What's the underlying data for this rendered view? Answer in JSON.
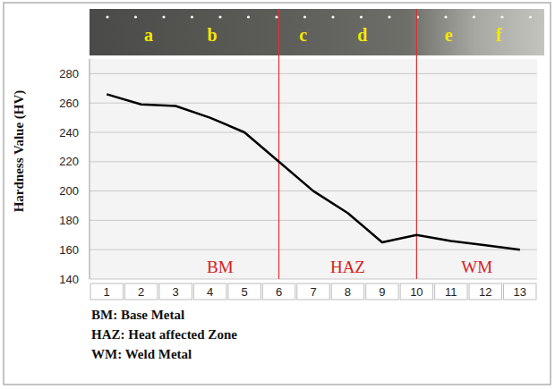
{
  "chart_data": {
    "type": "line",
    "y_label": "Hardness Value (HV)",
    "x": [
      1,
      2,
      3,
      4,
      5,
      6,
      7,
      8,
      9,
      10,
      11,
      12,
      13
    ],
    "values": [
      266,
      259,
      258,
      250,
      240,
      220,
      200,
      185,
      165,
      170,
      166,
      163,
      160
    ],
    "color": "#000000",
    "xlim": [
      0.5,
      13.5
    ],
    "xticks": [
      1,
      2,
      3,
      4,
      5,
      6,
      7,
      8,
      9,
      10,
      11,
      12,
      13
    ],
    "ylim": [
      140,
      290
    ],
    "yticks": [
      140,
      160,
      180,
      200,
      220,
      240,
      260,
      280
    ],
    "grid": true,
    "boundaries": [
      6,
      10
    ],
    "region_labels": [
      "BM",
      "HAZ",
      "WM"
    ],
    "strip_labels": [
      "a",
      "b",
      "c",
      "d",
      "e",
      "f"
    ],
    "notes": [
      "BM: Base Metal",
      "HAZ: Heat affected Zone",
      "WM: Weld Metal"
    ]
  }
}
